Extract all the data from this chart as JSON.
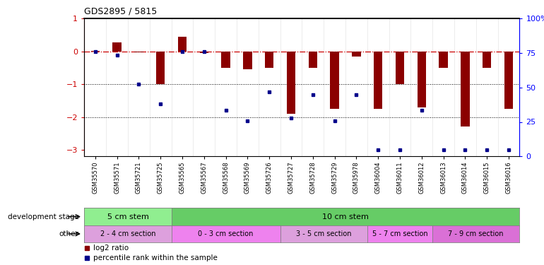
{
  "title": "GDS2895 / 5815",
  "categories": [
    "GSM35570",
    "GSM35571",
    "GSM35721",
    "GSM35725",
    "GSM35565",
    "GSM35567",
    "GSM35568",
    "GSM35569",
    "GSM35726",
    "GSM35727",
    "GSM35728",
    "GSM35729",
    "GSM35978",
    "GSM36004",
    "GSM36011",
    "GSM36012",
    "GSM36013",
    "GSM36014",
    "GSM36015",
    "GSM36016"
  ],
  "log2_ratio": [
    0.02,
    0.28,
    -0.02,
    -1.0,
    0.45,
    -0.05,
    -0.5,
    -0.55,
    -0.5,
    -1.9,
    -0.5,
    -1.75,
    -0.15,
    -1.75,
    -1.0,
    -1.7,
    -0.5,
    -2.3,
    -0.5,
    -1.75
  ],
  "percentile": [
    75,
    72,
    50,
    35,
    75,
    75,
    30,
    22,
    44,
    24,
    42,
    22,
    42,
    0,
    0,
    30,
    0,
    0,
    0,
    0
  ],
  "bar_color": "#8B0000",
  "dot_color": "#00008B",
  "dash_color": "#CC0000",
  "ylim_left": [
    -3.2,
    1.0
  ],
  "ylim_right": [
    0,
    100
  ],
  "yticks_left": [
    -3,
    -2,
    -1,
    0,
    1
  ],
  "yticks_right": [
    0,
    25,
    50,
    75,
    100
  ],
  "dev_stage_groups": [
    {
      "label": "5 cm stem",
      "start": 0,
      "end": 3,
      "color": "#90EE90"
    },
    {
      "label": "10 cm stem",
      "start": 4,
      "end": 19,
      "color": "#66CC66"
    }
  ],
  "other_groups": [
    {
      "label": "2 - 4 cm section",
      "start": 0,
      "end": 3,
      "color": "#DDA0DD"
    },
    {
      "label": "0 - 3 cm section",
      "start": 4,
      "end": 8,
      "color": "#EE82EE"
    },
    {
      "label": "3 - 5 cm section",
      "start": 9,
      "end": 12,
      "color": "#DDA0DD"
    },
    {
      "label": "5 - 7 cm section",
      "start": 13,
      "end": 15,
      "color": "#EE82EE"
    },
    {
      "label": "7 - 9 cm section",
      "start": 16,
      "end": 19,
      "color": "#DA70D6"
    }
  ],
  "dev_stage_label": "development stage",
  "other_label": "other",
  "legend_items": [
    {
      "label": "log2 ratio",
      "color": "#8B0000"
    },
    {
      "label": "percentile rank within the sample",
      "color": "#00008B"
    }
  ]
}
